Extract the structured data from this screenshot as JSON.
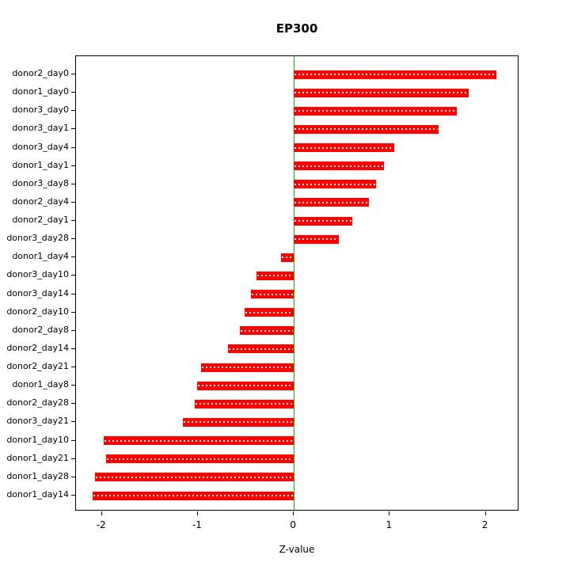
{
  "chart_data": {
    "type": "bar",
    "orientation": "horizontal",
    "title": "EP300",
    "xlabel": "Z-value",
    "ylabel": "",
    "xlim": [
      -2.27,
      2.35
    ],
    "x_ticks": [
      -2,
      -1,
      0,
      1,
      2
    ],
    "grid": false,
    "legend": "none",
    "bar_color": "#FF0000",
    "bar_dash_color": "#FFFFFF",
    "zero_line_color": "#00C400",
    "categories": [
      "donor2_day0",
      "donor1_day0",
      "donor3_day0",
      "donor3_day1",
      "donor3_day4",
      "donor1_day1",
      "donor3_day8",
      "donor2_day4",
      "donor2_day1",
      "donor3_day28",
      "donor1_day4",
      "donor3_day10",
      "donor3_day14",
      "donor2_day10",
      "donor2_day8",
      "donor2_day14",
      "donor2_day21",
      "donor1_day8",
      "donor2_day28",
      "donor3_day21",
      "donor1_day10",
      "donor1_day21",
      "donor1_day28",
      "donor1_day14"
    ],
    "values": [
      2.11,
      1.82,
      1.7,
      1.51,
      1.05,
      0.94,
      0.86,
      0.78,
      0.61,
      0.47,
      -0.13,
      -0.39,
      -0.45,
      -0.51,
      -0.56,
      -0.69,
      -0.97,
      -1.01,
      -1.03,
      -1.16,
      -1.98,
      -1.96,
      -2.07,
      -2.1
    ]
  }
}
